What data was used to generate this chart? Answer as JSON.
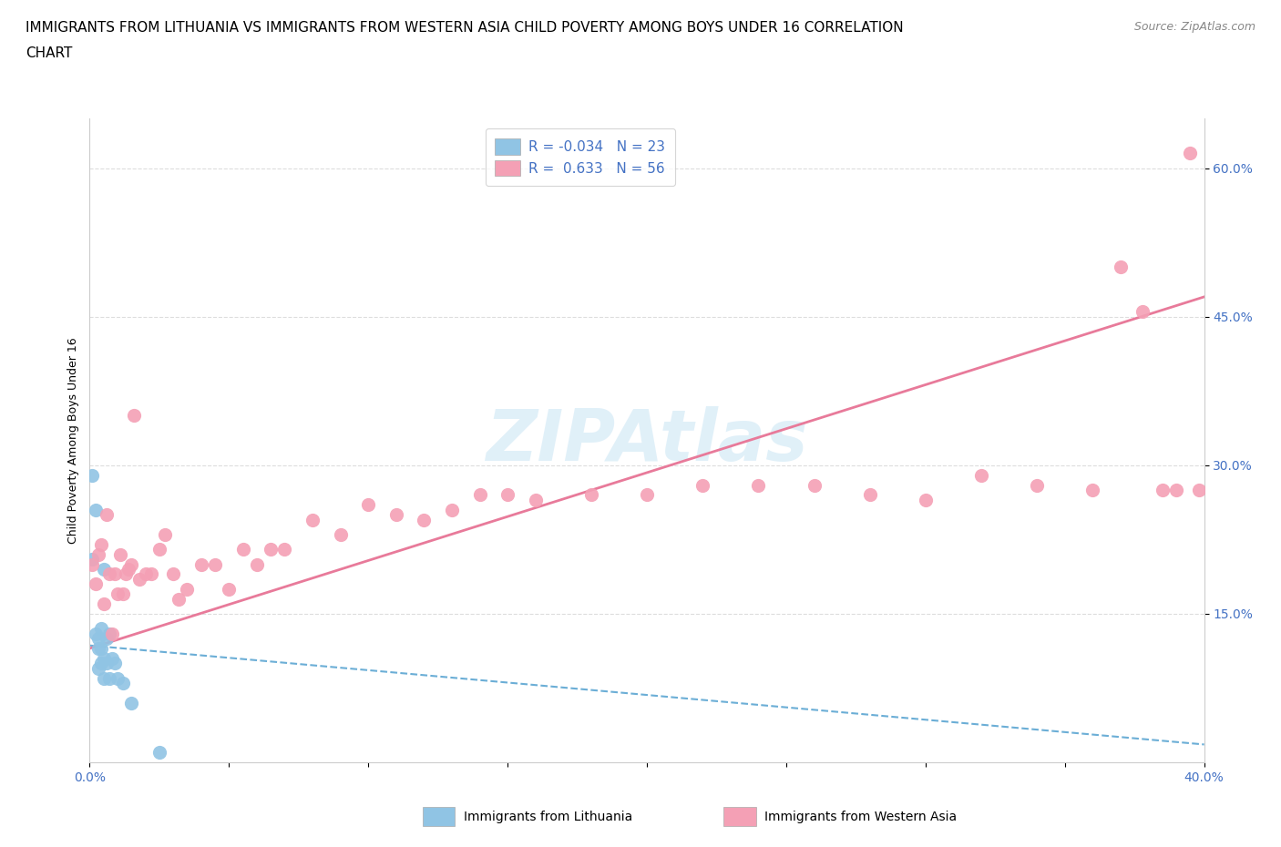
{
  "title_line1": "IMMIGRANTS FROM LITHUANIA VS IMMIGRANTS FROM WESTERN ASIA CHILD POVERTY AMONG BOYS UNDER 16 CORRELATION",
  "title_line2": "CHART",
  "source_text": "Source: ZipAtlas.com",
  "watermark": "ZIPAtlas",
  "ylabel": "Child Poverty Among Boys Under 16",
  "xlim": [
    0.0,
    0.42
  ],
  "ylim": [
    -0.05,
    0.68
  ],
  "plot_xlim": [
    0.0,
    0.4
  ],
  "plot_ylim": [
    0.0,
    0.65
  ],
  "x_ticks": [
    0.0,
    0.05,
    0.1,
    0.15,
    0.2,
    0.25,
    0.3,
    0.35,
    0.4
  ],
  "y_tick_positions": [
    0.15,
    0.3,
    0.45,
    0.6
  ],
  "y_tick_labels": [
    "15.0%",
    "30.0%",
    "45.0%",
    "60.0%"
  ],
  "color_lithuania": "#90c4e4",
  "color_western_asia": "#f4a0b5",
  "color_trendline_lithuania": "#6baed6",
  "color_trendline_western_asia": "#e87a9a",
  "grid_color": "#dddddd",
  "background_color": "#ffffff",
  "lith_trendline_x0": 0.0,
  "lith_trendline_y0": 0.118,
  "lith_trendline_x1": 0.4,
  "lith_trendline_y1": 0.018,
  "wa_trendline_x0": 0.0,
  "wa_trendline_y0": 0.115,
  "wa_trendline_x1": 0.4,
  "wa_trendline_y1": 0.47,
  "lithuania_x": [
    0.001,
    0.001,
    0.002,
    0.002,
    0.003,
    0.003,
    0.003,
    0.004,
    0.004,
    0.004,
    0.005,
    0.005,
    0.005,
    0.006,
    0.006,
    0.007,
    0.007,
    0.008,
    0.009,
    0.01,
    0.012,
    0.015,
    0.025
  ],
  "lithuania_y": [
    0.29,
    0.205,
    0.255,
    0.13,
    0.115,
    0.125,
    0.095,
    0.135,
    0.115,
    0.1,
    0.105,
    0.195,
    0.085,
    0.125,
    0.1,
    0.085,
    0.13,
    0.105,
    0.1,
    0.085,
    0.08,
    0.06,
    0.01
  ],
  "western_asia_x": [
    0.001,
    0.002,
    0.003,
    0.004,
    0.005,
    0.006,
    0.007,
    0.008,
    0.009,
    0.01,
    0.011,
    0.012,
    0.013,
    0.014,
    0.015,
    0.016,
    0.018,
    0.02,
    0.022,
    0.025,
    0.027,
    0.03,
    0.032,
    0.035,
    0.04,
    0.045,
    0.05,
    0.055,
    0.06,
    0.065,
    0.07,
    0.08,
    0.09,
    0.1,
    0.11,
    0.12,
    0.13,
    0.14,
    0.15,
    0.16,
    0.18,
    0.2,
    0.22,
    0.24,
    0.26,
    0.28,
    0.3,
    0.32,
    0.34,
    0.36,
    0.37,
    0.378,
    0.385,
    0.39,
    0.395,
    0.398
  ],
  "western_asia_y": [
    0.2,
    0.18,
    0.21,
    0.22,
    0.16,
    0.25,
    0.19,
    0.13,
    0.19,
    0.17,
    0.21,
    0.17,
    0.19,
    0.195,
    0.2,
    0.35,
    0.185,
    0.19,
    0.19,
    0.215,
    0.23,
    0.19,
    0.165,
    0.175,
    0.2,
    0.2,
    0.175,
    0.215,
    0.2,
    0.215,
    0.215,
    0.245,
    0.23,
    0.26,
    0.25,
    0.245,
    0.255,
    0.27,
    0.27,
    0.265,
    0.27,
    0.27,
    0.28,
    0.28,
    0.28,
    0.27,
    0.265,
    0.29,
    0.28,
    0.275,
    0.5,
    0.455,
    0.275,
    0.275,
    0.615,
    0.275
  ],
  "title_fontsize": 11,
  "axis_label_fontsize": 9,
  "tick_fontsize": 10,
  "legend_fontsize": 11
}
